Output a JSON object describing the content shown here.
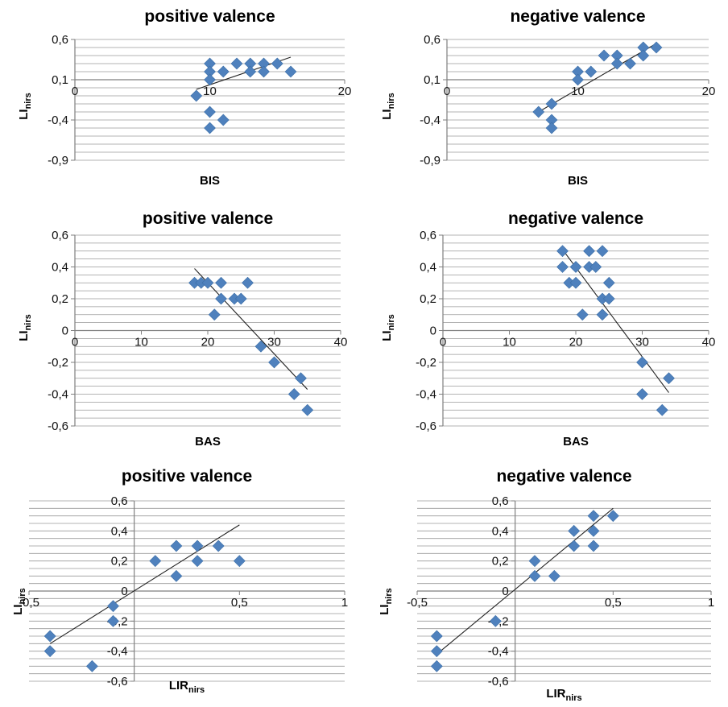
{
  "chart_data": [
    {
      "type": "scatter",
      "title": "positive valence",
      "xlabel": "BIS",
      "ylabel": "LI",
      "ylabel_sub": "nirs",
      "xlim": [
        0,
        20
      ],
      "ylim": [
        -0.9,
        0.6
      ],
      "x_ticks": [
        0,
        10,
        20
      ],
      "x_tick_labels": [
        "0",
        "10",
        "20"
      ],
      "y_ticks": [
        0.6,
        0.1,
        -0.4,
        -0.9
      ],
      "y_tick_labels": [
        "0,6",
        "0,1",
        "-0,4",
        "-0,9"
      ],
      "grid": "horizontal minor lines every 0.1",
      "marker_color": "#4f81bd",
      "trendline": [
        [
          9,
          -0.02
        ],
        [
          16,
          0.38
        ]
      ],
      "points": [
        [
          9,
          -0.1
        ],
        [
          10,
          0.3
        ],
        [
          10,
          0.2
        ],
        [
          10,
          0.1
        ],
        [
          10,
          -0.3
        ],
        [
          10,
          -0.5
        ],
        [
          11,
          0.2
        ],
        [
          11,
          -0.4
        ],
        [
          12,
          0.3
        ],
        [
          13,
          0.3
        ],
        [
          13,
          0.2
        ],
        [
          14,
          0.3
        ],
        [
          14,
          0.2
        ],
        [
          15,
          0.3
        ],
        [
          16,
          0.2
        ]
      ]
    },
    {
      "type": "scatter",
      "title": "negative valence",
      "xlabel": "BIS",
      "ylabel": "LI",
      "ylabel_sub": "nirs",
      "xlim": [
        0,
        20
      ],
      "ylim": [
        -0.9,
        0.6
      ],
      "x_ticks": [
        0,
        10,
        20
      ],
      "x_tick_labels": [
        "0",
        "10",
        "20"
      ],
      "y_ticks": [
        0.6,
        0.1,
        -0.4,
        -0.9
      ],
      "y_tick_labels": [
        "0,6",
        "0,1",
        "-0,4",
        "-0,9"
      ],
      "grid": "horizontal minor lines every 0.1",
      "marker_color": "#4f81bd",
      "trendline": [
        [
          7,
          -0.3
        ],
        [
          16,
          0.55
        ]
      ],
      "points": [
        [
          7,
          -0.3
        ],
        [
          8,
          -0.2
        ],
        [
          8,
          -0.4
        ],
        [
          8,
          -0.5
        ],
        [
          10,
          0.2
        ],
        [
          10,
          0.1
        ],
        [
          11,
          0.2
        ],
        [
          12,
          0.4
        ],
        [
          13,
          0.4
        ],
        [
          13,
          0.3
        ],
        [
          14,
          0.3
        ],
        [
          15,
          0.5
        ],
        [
          15,
          0.4
        ],
        [
          16,
          0.5
        ]
      ]
    },
    {
      "type": "scatter",
      "title": "positive valence",
      "xlabel": "BAS",
      "ylabel": "LI",
      "ylabel_sub": "nirs",
      "xlim": [
        0,
        40
      ],
      "ylim": [
        -0.6,
        0.6
      ],
      "x_ticks": [
        0,
        10,
        20,
        30,
        40
      ],
      "x_tick_labels": [
        "0",
        "10",
        "20",
        "30",
        "40"
      ],
      "y_ticks": [
        0.6,
        0.4,
        0.2,
        0,
        -0.2,
        -0.4,
        -0.6
      ],
      "y_tick_labels": [
        "0,6",
        "0,4",
        "0,2",
        "0",
        "-0,2",
        "-0,4",
        "-0,6"
      ],
      "grid": "horizontal minor lines every 0.05",
      "marker_color": "#4f81bd",
      "trendline": [
        [
          18,
          0.39
        ],
        [
          35,
          -0.37
        ]
      ],
      "points": [
        [
          18,
          0.3
        ],
        [
          19,
          0.3
        ],
        [
          20,
          0.3
        ],
        [
          21,
          0.1
        ],
        [
          22,
          0.3
        ],
        [
          22,
          0.2
        ],
        [
          24,
          0.2
        ],
        [
          25,
          0.2
        ],
        [
          26,
          0.3
        ],
        [
          28,
          -0.1
        ],
        [
          30,
          -0.2
        ],
        [
          33,
          -0.4
        ],
        [
          34,
          -0.3
        ],
        [
          35,
          -0.5
        ]
      ]
    },
    {
      "type": "scatter",
      "title": "negative valence",
      "xlabel": "BAS",
      "ylabel": "LI",
      "ylabel_sub": "nirs",
      "xlim": [
        0,
        40
      ],
      "ylim": [
        -0.6,
        0.6
      ],
      "x_ticks": [
        0,
        10,
        20,
        30,
        40
      ],
      "x_tick_labels": [
        "0",
        "10",
        "20",
        "30",
        "40"
      ],
      "y_ticks": [
        0.6,
        0.4,
        0.2,
        0,
        -0.2,
        -0.4,
        -0.6
      ],
      "y_tick_labels": [
        "0,6",
        "0,4",
        "0,2",
        "0",
        "-0,2",
        "-0,4",
        "-0,6"
      ],
      "grid": "horizontal minor lines every 0.05",
      "marker_color": "#4f81bd",
      "trendline": [
        [
          18,
          0.51
        ],
        [
          34,
          -0.39
        ]
      ],
      "points": [
        [
          18,
          0.5
        ],
        [
          18,
          0.4
        ],
        [
          19,
          0.3
        ],
        [
          20,
          0.4
        ],
        [
          20,
          0.3
        ],
        [
          21,
          0.1
        ],
        [
          22,
          0.5
        ],
        [
          22,
          0.4
        ],
        [
          23,
          0.4
        ],
        [
          24,
          0.5
        ],
        [
          24,
          0.2
        ],
        [
          24,
          0.1
        ],
        [
          25,
          0.3
        ],
        [
          25,
          0.2
        ],
        [
          30,
          -0.2
        ],
        [
          30,
          -0.4
        ],
        [
          33,
          -0.5
        ],
        [
          34,
          -0.3
        ]
      ]
    },
    {
      "type": "scatter",
      "title": "positive valence",
      "xlabel": "LIR",
      "xlabel_sub": "nirs",
      "ylabel": "LI",
      "ylabel_sub": "nirs",
      "xlim": [
        -0.5,
        1
      ],
      "ylim": [
        -0.6,
        0.6
      ],
      "x_ticks": [
        -0.5,
        0.5,
        1
      ],
      "x_tick_labels": [
        "-0,5",
        "0,5",
        "1"
      ],
      "y_ticks": [
        0.6,
        0.4,
        0.2,
        0,
        -0.2,
        -0.4,
        -0.6
      ],
      "y_tick_labels": [
        "0,6",
        "0,4",
        "0,2",
        "0",
        "-0,2",
        "-0,4",
        "-0,6"
      ],
      "grid": "horizontal minor lines every 0.05",
      "marker_color": "#4f81bd",
      "trendline": [
        [
          -0.4,
          -0.35
        ],
        [
          0.5,
          0.44
        ]
      ],
      "points": [
        [
          -0.4,
          -0.3
        ],
        [
          -0.4,
          -0.4
        ],
        [
          -0.2,
          -0.5
        ],
        [
          -0.1,
          -0.1
        ],
        [
          -0.1,
          -0.2
        ],
        [
          0.1,
          0.2
        ],
        [
          0.2,
          0.3
        ],
        [
          0.2,
          0.1
        ],
        [
          0.3,
          0.3
        ],
        [
          0.3,
          0.2
        ],
        [
          0.4,
          0.3
        ],
        [
          0.5,
          0.2
        ]
      ]
    },
    {
      "type": "scatter",
      "title": "negative valence",
      "xlabel": "LIR",
      "xlabel_sub": "nirs",
      "ylabel": "LI",
      "ylabel_sub": "nirs",
      "xlim": [
        -0.5,
        1
      ],
      "ylim": [
        -0.6,
        0.6
      ],
      "x_ticks": [
        -0.5,
        0.5,
        1
      ],
      "x_tick_labels": [
        "-0,5",
        "0,5",
        "1"
      ],
      "y_ticks": [
        0.6,
        0.4,
        0.2,
        0,
        -0.2,
        -0.4,
        -0.6
      ],
      "y_tick_labels": [
        "0,6",
        "0,4",
        "0,2",
        "0",
        "-0,2",
        "-0,4",
        "-0,6"
      ],
      "grid": "horizontal minor lines every 0.05",
      "marker_color": "#4f81bd",
      "trendline": [
        [
          -0.4,
          -0.42
        ],
        [
          0.5,
          0.55
        ]
      ],
      "points": [
        [
          -0.4,
          -0.3
        ],
        [
          -0.4,
          -0.4
        ],
        [
          -0.4,
          -0.5
        ],
        [
          -0.1,
          -0.2
        ],
        [
          0.1,
          0.2
        ],
        [
          0.1,
          0.1
        ],
        [
          0.2,
          0.1
        ],
        [
          0.3,
          0.4
        ],
        [
          0.3,
          0.3
        ],
        [
          0.4,
          0.5
        ],
        [
          0.4,
          0.4
        ],
        [
          0.4,
          0.3
        ],
        [
          0.5,
          0.5
        ]
      ]
    }
  ]
}
